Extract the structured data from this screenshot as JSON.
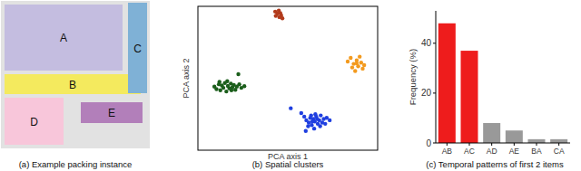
{
  "diagram": {
    "type": "packing",
    "title": "(a) Example packing instance",
    "items": [
      {
        "label": "A",
        "color": "#c4bde0"
      },
      {
        "label": "B",
        "color": "#f4ea5e"
      },
      {
        "label": "C",
        "color": "#7fb1d6"
      },
      {
        "label": "D",
        "color": "#f8c6da"
      },
      {
        "label": "E",
        "color": "#b27fba"
      }
    ]
  },
  "chart_data": [
    {
      "type": "scatter",
      "title": "(b) Spatial clusters",
      "xlabel": "PCA axis 1",
      "ylabel": "PCA axis 2",
      "xlim": [
        -3,
        3
      ],
      "ylim": [
        -3,
        3
      ],
      "tick_labels": false,
      "grid": false,
      "marker": "circle",
      "series": [
        {
          "color": "#1b5e1b",
          "x": [
            -2.45,
            -2.38,
            -2.3,
            -2.25,
            -2.2,
            -2.15,
            -2.1,
            -2.05,
            -2.0,
            -1.95,
            -1.9,
            -1.85,
            -1.8,
            -1.75,
            -1.7,
            -1.62,
            -1.55,
            -1.45,
            -2.28,
            -2.02,
            -1.88,
            -1.65
          ],
          "y": [
            -0.35,
            -0.45,
            -0.25,
            -0.5,
            -0.3,
            -0.4,
            -0.2,
            -0.55,
            -0.32,
            -0.42,
            -0.22,
            -0.38,
            -0.28,
            -0.48,
            -0.35,
            -0.25,
            -0.4,
            -0.33,
            -0.15,
            -0.12,
            -0.5,
            0.17
          ]
        },
        {
          "color": "#1f3fe0",
          "x": [
            0.1,
            0.45,
            0.55,
            0.62,
            0.7,
            0.75,
            0.8,
            0.85,
            0.9,
            0.95,
            1.0,
            1.05,
            1.1,
            1.15,
            1.2,
            1.3,
            1.4,
            0.68,
            0.78,
            0.88,
            0.98,
            1.08,
            0.92,
            1.25,
            0.6,
            0.82
          ],
          "y": [
            -1.25,
            -1.45,
            -1.6,
            -1.75,
            -1.85,
            -1.65,
            -1.95,
            -1.7,
            -1.8,
            -1.6,
            -1.9,
            -1.75,
            -1.55,
            -1.85,
            -1.7,
            -1.65,
            -1.75,
            -2.0,
            -1.55,
            -2.1,
            -1.7,
            -2.0,
            -1.5,
            -1.9,
            -2.2,
            -1.8
          ]
        },
        {
          "color": "#f39a1e",
          "x": [
            2.0,
            2.1,
            2.2,
            2.3,
            2.35,
            2.45,
            2.5,
            2.25,
            2.4,
            2.55,
            2.15,
            2.3
          ],
          "y": [
            0.7,
            0.85,
            0.6,
            0.75,
            0.5,
            0.65,
            0.4,
            0.3,
            0.9,
            0.55,
            0.45,
            0.62
          ]
        },
        {
          "color": "#b23b1c",
          "x": [
            -0.42,
            -0.35,
            -0.3,
            -0.22,
            -0.28,
            -0.18,
            -0.4,
            -0.25
          ],
          "y": [
            2.78,
            2.7,
            2.82,
            2.62,
            2.55,
            2.5,
            2.6,
            2.72
          ]
        }
      ]
    },
    {
      "type": "bar",
      "title": "(c) Temporal patterns of first 2 items",
      "ylabel": "Frequency (%)",
      "categories": [
        "AB",
        "AC",
        "AD",
        "AE",
        "BA",
        "CA"
      ],
      "values": [
        48,
        37,
        8,
        5,
        1.5,
        1.5
      ],
      "colors": [
        "#ee1c1c",
        "#ee1c1c",
        "#999999",
        "#999999",
        "#999999",
        "#999999"
      ],
      "ylim": [
        0,
        53
      ],
      "yticks": [
        0,
        20,
        40
      ],
      "grid": false
    }
  ]
}
